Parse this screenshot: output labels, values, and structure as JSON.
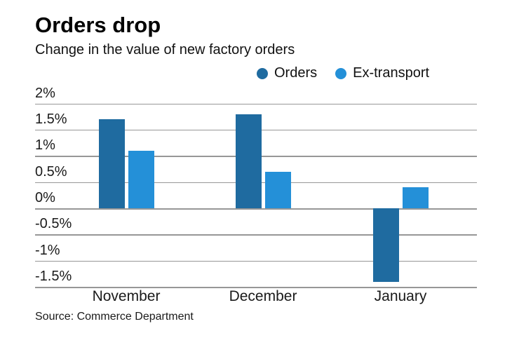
{
  "header": {
    "title": "Orders drop",
    "subtitle": "Change in the value of new factory orders"
  },
  "legend": [
    {
      "label": "Orders",
      "color": "#1f6ba0"
    },
    {
      "label": "Ex-transport",
      "color": "#2490d8"
    }
  ],
  "source_note": "Source: Commerce Department",
  "colors": {
    "orders": "#1f6ba0",
    "ex_transport": "#2490d8",
    "gridline": "#979797",
    "text": "#1a1a1a",
    "background": "#ffffff"
  },
  "chart_data": {
    "type": "bar",
    "title": "Orders drop",
    "subtitle": "Change in the value of new factory orders",
    "categories": [
      "November",
      "December",
      "January"
    ],
    "series": [
      {
        "name": "Orders",
        "color": "#1f6ba0",
        "values": [
          1.7,
          1.8,
          -1.4
        ]
      },
      {
        "name": "Ex-transport",
        "color": "#2490d8",
        "values": [
          1.1,
          0.7,
          0.4
        ]
      }
    ],
    "unit": "%",
    "xlabel": "",
    "ylabel": "",
    "ylim": [
      -1.5,
      2
    ],
    "ytick_step": 0.5,
    "yticks": [
      {
        "value": 2,
        "label": "2%"
      },
      {
        "value": 1.5,
        "label": "1.5%"
      },
      {
        "value": 1,
        "label": "1%"
      },
      {
        "value": 0.5,
        "label": "0.5%"
      },
      {
        "value": 0,
        "label": "0%"
      },
      {
        "value": -0.5,
        "label": "-0.5%"
      },
      {
        "value": -1,
        "label": "-1%"
      },
      {
        "value": -1.5,
        "label": "-1.5%"
      }
    ],
    "grid": true,
    "legend_position": "top-right",
    "source": "Source: Commerce Department"
  }
}
